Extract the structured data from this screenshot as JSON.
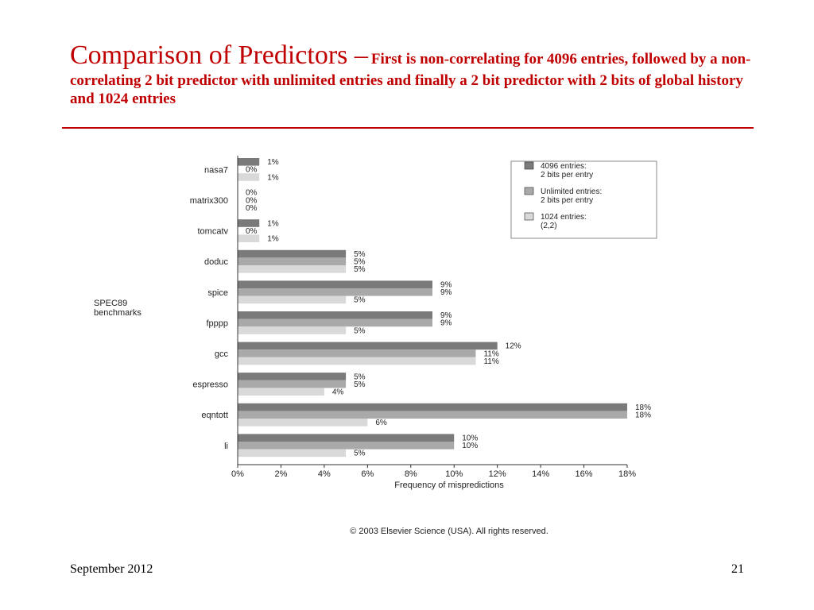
{
  "slide": {
    "title_main": "Comparison of Predictors –",
    "title_sub": "First is non-correlating for 4096 entries, followed by a non-correlating 2 bit predictor with unlimited entries and finally a 2 bit predictor with 2 bits of global history and 1024 entries",
    "footer_date": "September 2012",
    "page_number": "21"
  },
  "chart_data": {
    "type": "bar",
    "orientation": "horizontal",
    "group_label": "SPEC89 benchmarks",
    "xlabel": "Frequency of mispredictions",
    "categories": [
      "nasa7",
      "matrix300",
      "tomcatv",
      "doduc",
      "spice",
      "fpppp",
      "gcc",
      "espresso",
      "eqntott",
      "li"
    ],
    "series": [
      {
        "name": "4096 entries: 2 bits per entry",
        "name_lines": [
          "4096 entries:",
          "2 bits per entry"
        ],
        "color": "#7a7a7a",
        "values": [
          1,
          0,
          1,
          5,
          9,
          9,
          12,
          5,
          18,
          10
        ],
        "labels": [
          "1%",
          "0%",
          "1%",
          "5%",
          "9%",
          "9%",
          "12%",
          "5%",
          "18%",
          "10%"
        ]
      },
      {
        "name": "Unlimited entries: 2 bits per entry",
        "name_lines": [
          "Unlimited entries:",
          "2 bits per entry"
        ],
        "color": "#a9a9a9",
        "values": [
          0,
          0,
          0,
          5,
          9,
          9,
          11,
          5,
          18,
          10
        ],
        "labels": [
          "0%",
          "0%",
          "0%",
          "5%",
          "9%",
          "9%",
          "11%",
          "5%",
          "18%",
          "10%"
        ]
      },
      {
        "name": "1024 entries: (2,2)",
        "name_lines": [
          "1024 entries:",
          "(2,2)"
        ],
        "color": "#d9d9d9",
        "values": [
          1,
          0,
          1,
          5,
          5,
          5,
          11,
          4,
          6,
          5
        ],
        "labels": [
          "1%",
          "0%",
          "1%",
          "5%",
          "5%",
          "5%",
          "11%",
          "4%",
          "6%",
          "5%"
        ]
      }
    ],
    "xlim": [
      0,
      18
    ],
    "xticks": [
      "0%",
      "2%",
      "4%",
      "6%",
      "8%",
      "10%",
      "12%",
      "14%",
      "16%",
      "18%"
    ],
    "legend_position": "top-right",
    "grid": false,
    "copyright": "© 2003 Elsevier Science (USA). All rights reserved."
  }
}
